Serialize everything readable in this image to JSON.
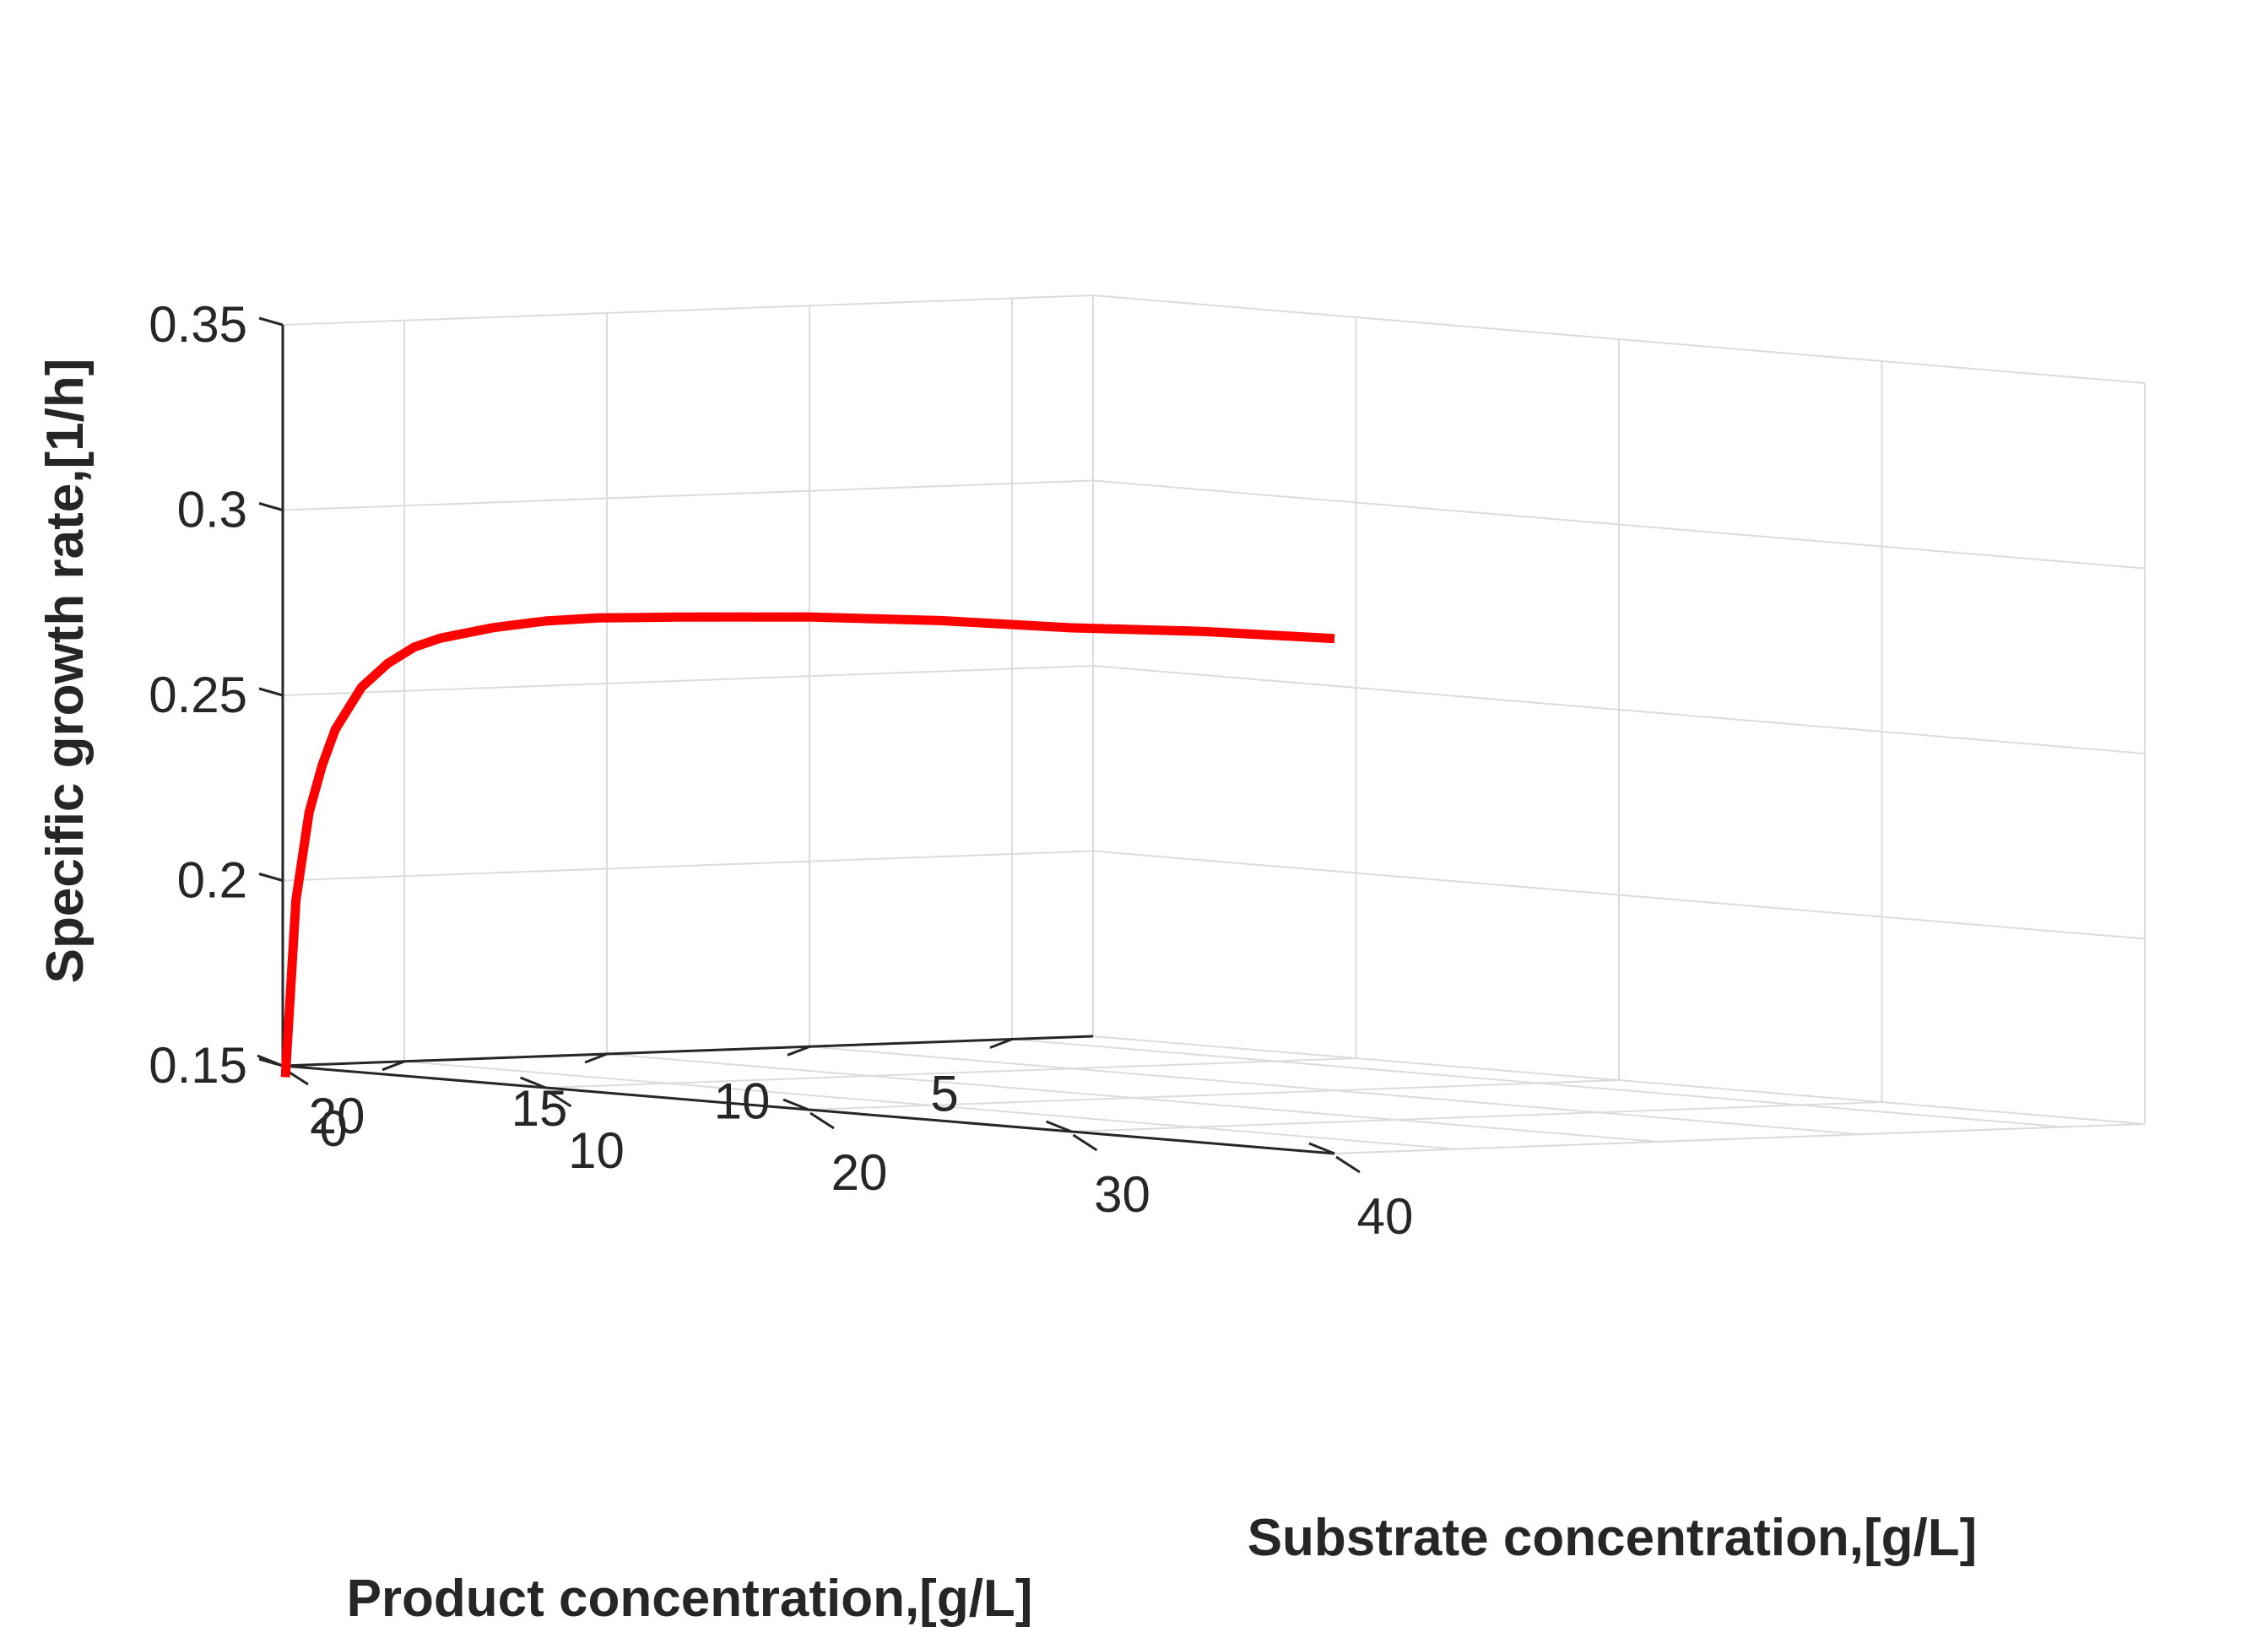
{
  "chart_data": {
    "type": "line",
    "projection": "3d",
    "xlabel": "Substrate concentration,[g/L]",
    "ylabel": "Product concentration,[g/L]",
    "zlabel": "Specific growth rate,[1/h]",
    "xlim": [
      0,
      40
    ],
    "ylim": [
      3,
      23
    ],
    "zlim": [
      0.15,
      0.35
    ],
    "xticks": [
      0,
      10,
      20,
      30,
      40
    ],
    "yticks": [
      5,
      10,
      15,
      20
    ],
    "zticks": [
      0.15,
      0.2,
      0.25,
      0.3,
      0.35
    ],
    "xtick_labels": [
      "0",
      "10",
      "20",
      "30",
      "40"
    ],
    "ytick_labels": [
      "5",
      "10",
      "15",
      "20"
    ],
    "ztick_labels": [
      "0.15",
      "0.2",
      "0.25",
      "0.3",
      "0.35"
    ],
    "grid": true,
    "series": [
      {
        "color": "#ff0000",
        "points": [
          {
            "x": 0.1,
            "y": 23,
            "z": 0.147
          },
          {
            "x": 0.5,
            "y": 23,
            "z": 0.195
          },
          {
            "x": 1.0,
            "y": 23,
            "z": 0.219
          },
          {
            "x": 1.5,
            "y": 23,
            "z": 0.232
          },
          {
            "x": 2.0,
            "y": 23,
            "z": 0.242
          },
          {
            "x": 3.0,
            "y": 23,
            "z": 0.254
          },
          {
            "x": 4.0,
            "y": 23,
            "z": 0.261
          },
          {
            "x": 5.0,
            "y": 23,
            "z": 0.266
          },
          {
            "x": 6.0,
            "y": 23,
            "z": 0.269
          },
          {
            "x": 8.0,
            "y": 23,
            "z": 0.273
          },
          {
            "x": 10.0,
            "y": 23,
            "z": 0.276
          },
          {
            "x": 12.0,
            "y": 23,
            "z": 0.278
          },
          {
            "x": 15.0,
            "y": 23,
            "z": 0.28
          },
          {
            "x": 20.0,
            "y": 23,
            "z": 0.283
          },
          {
            "x": 25.0,
            "y": 23,
            "z": 0.285
          },
          {
            "x": 30.0,
            "y": 23,
            "z": 0.286
          },
          {
            "x": 35.0,
            "y": 23,
            "z": 0.288
          },
          {
            "x": 40.0,
            "y": 23,
            "z": 0.289
          }
        ]
      }
    ]
  }
}
